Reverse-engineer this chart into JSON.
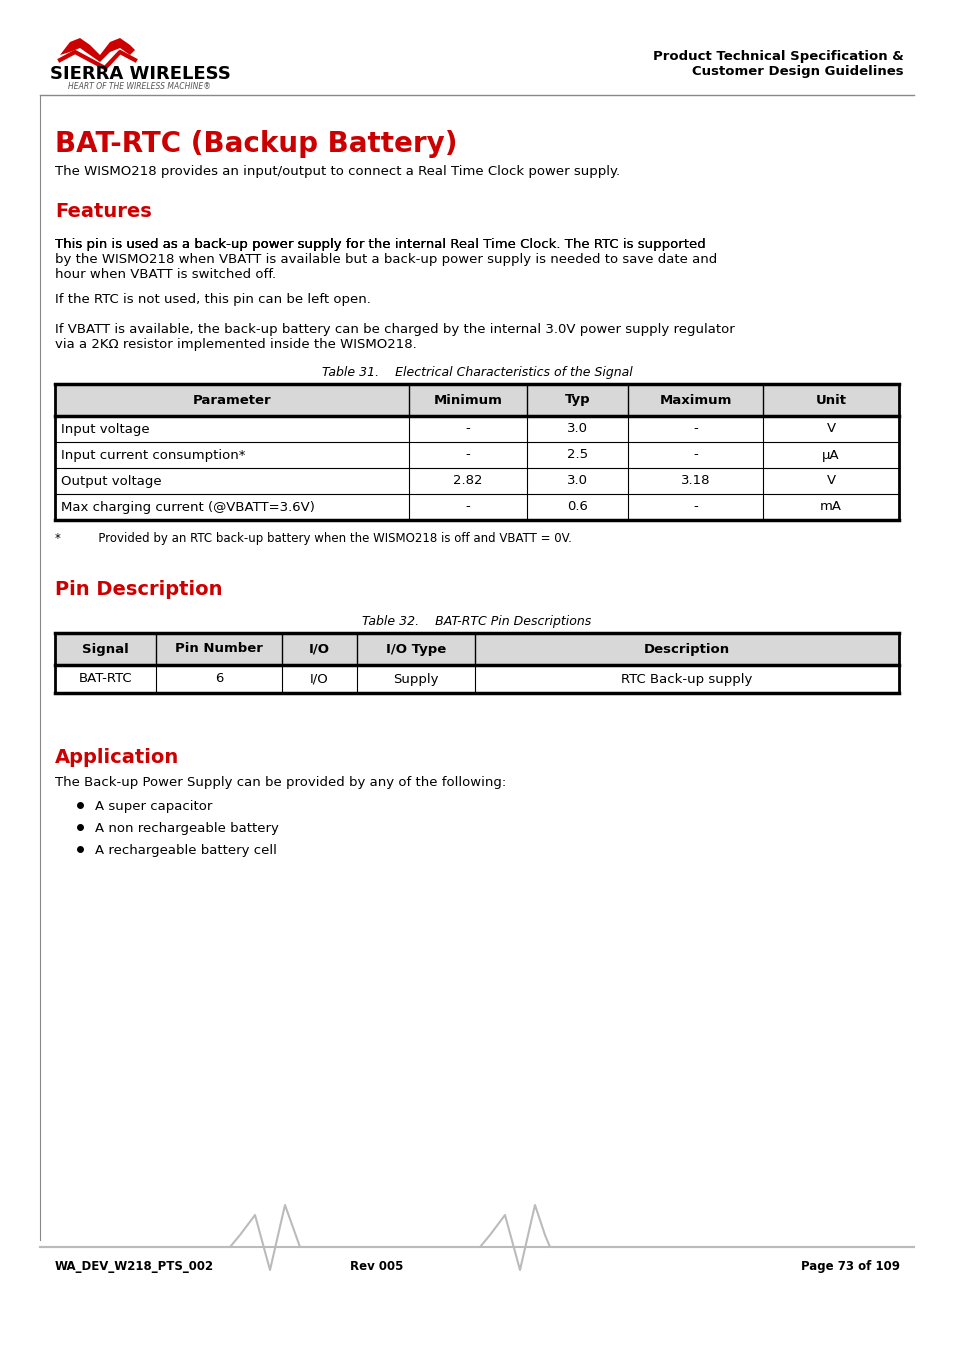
{
  "page_title": "BAT-RTC (Backup Battery)",
  "header_right_line1": "Product Technical Specification &",
  "header_right_line2": "Customer Design Guidelines",
  "intro_text": "The WISMO218 provides an input/output to connect a Real Time Clock power supply.",
  "features_title": "Features",
  "features_text1": "This pin is used as a back-up power supply for the internal Real Time Clock. The RTC is supported\nby the WISMO218 when VBATT is available but a back-up power supply is needed to save date and\nhour when VBATT is switched off.",
  "features_text2": "If the RTC is not used, this pin can be left open.",
  "features_text3": "If VBATT is available, the back-up battery can be charged by the internal 3.0V power supply regulator\nvia a 2KΩ resistor implemented inside the WISMO218.",
  "table31_caption": "Table 31.    Electrical Characteristics of the Signal",
  "table31_headers": [
    "Parameter",
    "Minimum",
    "Typ",
    "Maximum",
    "Unit"
  ],
  "table31_rows": [
    [
      "Input voltage",
      "-",
      "3.0",
      "-",
      "V"
    ],
    [
      "Input current consumption*",
      "-",
      "2.5",
      "-",
      "μA"
    ],
    [
      "Output voltage",
      "2.82",
      "3.0",
      "3.18",
      "V"
    ],
    [
      "Max charging current (@VBATT=3.6V)",
      "-",
      "0.6",
      "-",
      "mA"
    ]
  ],
  "table31_footnote": "*          Provided by an RTC back-up battery when the WISMO218 is off and VBATT = 0V.",
  "pin_desc_title": "Pin Description",
  "table32_caption": "Table 32.    BAT-RTC Pin Descriptions",
  "table32_headers": [
    "Signal",
    "Pin Number",
    "I/O",
    "I/O Type",
    "Description"
  ],
  "table32_rows": [
    [
      "BAT-RTC",
      "6",
      "I/O",
      "Supply",
      "RTC Back-up supply"
    ]
  ],
  "application_title": "Application",
  "application_text": "The Back-up Power Supply can be provided by any of the following:",
  "application_bullets": [
    "A super capacitor",
    "A non rechargeable battery",
    "A rechargeable battery cell"
  ],
  "footer_left": "WA_DEV_W218_PTS_002",
  "footer_center": "Rev 005",
  "footer_right": "Page 73 of 109",
  "accent_color": "#CC0000",
  "header_bg": "#f0f0f0",
  "table_header_bg": "#d0d0d0",
  "table_row_bg": "#ffffff",
  "border_color": "#000000",
  "text_color": "#000000"
}
